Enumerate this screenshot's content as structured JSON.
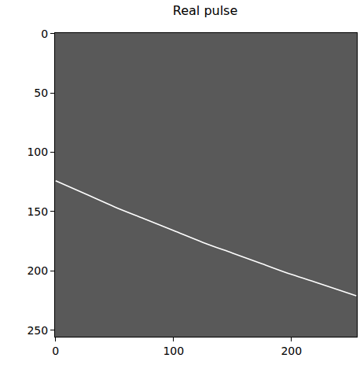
{
  "chart_data": {
    "type": "line",
    "title": "Real pulse",
    "x": [
      0,
      25,
      50,
      75,
      100,
      125,
      150,
      175,
      200,
      225,
      255
    ],
    "values": [
      124,
      135,
      146,
      156,
      166,
      176,
      185,
      194,
      203,
      211,
      221
    ],
    "color": "#ffffff",
    "xlim": [
      -0.5,
      255.5
    ],
    "xticks": [
      0,
      100,
      200
    ],
    "ylim": [
      255.5,
      -0.5
    ],
    "yticks": [
      0,
      50,
      100,
      150,
      200,
      250
    ],
    "grid": false
  }
}
